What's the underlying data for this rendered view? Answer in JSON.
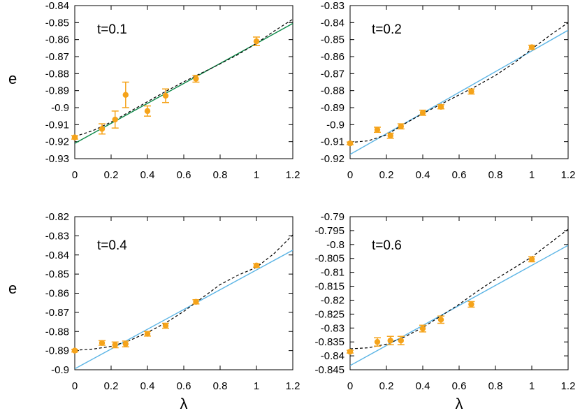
{
  "colors": {
    "points": "#f5a31a",
    "dashed_fit": "#000000",
    "linear_fit_panel1": "#0f8a4a",
    "linear_fit_other": "#5ab4e5"
  },
  "chart_data": [
    {
      "type": "scatter",
      "panel_label": "t=0.1",
      "ylabel": "e",
      "xlabel": "",
      "xlim": [
        0,
        1.2
      ],
      "ylim": [
        -0.93,
        -0.84
      ],
      "xticks": [
        0,
        0.2,
        0.4,
        0.6,
        0.8,
        1,
        1.2
      ],
      "xtick_labels": [
        "0",
        "0.2",
        "0.4",
        "0.6",
        "0.8",
        "1",
        "1.2"
      ],
      "yticks": [
        -0.93,
        -0.92,
        -0.91,
        -0.9,
        -0.89,
        -0.88,
        -0.87,
        -0.86,
        -0.85,
        -0.84
      ],
      "ytick_labels": [
        "-0.93",
        "-0.92",
        "-0.91",
        "-0.9",
        "-0.89",
        "-0.88",
        "-0.87",
        "-0.86",
        "-0.85",
        "-0.84"
      ],
      "grid": false,
      "points": {
        "x": [
          0,
          0.15,
          0.222,
          0.28,
          0.4,
          0.5,
          0.667,
          1
        ],
        "y": [
          -0.9175,
          -0.9125,
          -0.907,
          -0.8925,
          -0.902,
          -0.893,
          -0.883,
          -0.861
        ],
        "err": [
          0.001,
          0.003,
          0.005,
          0.0075,
          0.003,
          0.004,
          0.002,
          0.0025
        ]
      },
      "linear_fit": {
        "x": [
          0,
          1.2
        ],
        "y": [
          -0.921,
          -0.8505
        ]
      },
      "dashed_fit": {
        "x": [
          0,
          0.1,
          0.2,
          0.3,
          0.4,
          0.5,
          0.6,
          0.7,
          0.8,
          0.9,
          1.0,
          1.1,
          1.2
        ],
        "y": [
          -0.917,
          -0.9135,
          -0.9085,
          -0.9025,
          -0.8965,
          -0.8905,
          -0.8848,
          -0.8795,
          -0.8743,
          -0.8687,
          -0.8622,
          -0.8548,
          -0.848
        ]
      }
    },
    {
      "type": "scatter",
      "panel_label": "t=0.2",
      "ylabel": "",
      "xlabel": "",
      "xlim": [
        0,
        1.2
      ],
      "ylim": [
        -0.92,
        -0.83
      ],
      "xticks": [
        0,
        0.2,
        0.4,
        0.6,
        0.8,
        1,
        1.2
      ],
      "xtick_labels": [
        "0",
        "0.2",
        "0.4",
        "0.6",
        "0.8",
        "1",
        "1.2"
      ],
      "yticks": [
        -0.92,
        -0.91,
        -0.9,
        -0.89,
        -0.88,
        -0.87,
        -0.86,
        -0.85,
        -0.84,
        -0.83
      ],
      "ytick_labels": [
        "-0.92",
        "-0.91",
        "-0.9",
        "-0.89",
        "-0.88",
        "-0.87",
        "-0.86",
        "-0.85",
        "-0.84",
        "-0.83"
      ],
      "grid": false,
      "points": {
        "x": [
          0,
          0.15,
          0.222,
          0.28,
          0.4,
          0.5,
          0.667,
          1
        ],
        "y": [
          -0.911,
          -0.903,
          -0.9065,
          -0.901,
          -0.893,
          -0.8895,
          -0.8805,
          -0.8545
        ],
        "err": [
          0.0008,
          0.0015,
          0.0015,
          0.0015,
          0.0015,
          0.0012,
          0.0015,
          0.0012
        ]
      },
      "linear_fit": {
        "x": [
          0,
          1.2
        ],
        "y": [
          -0.9175,
          -0.8445
        ]
      },
      "dashed_fit": {
        "x": [
          0,
          0.1,
          0.2,
          0.3,
          0.4,
          0.5,
          0.6,
          0.7,
          0.8,
          0.9,
          1.0,
          1.1,
          1.2
        ],
        "y": [
          -0.9105,
          -0.9095,
          -0.906,
          -0.8995,
          -0.8935,
          -0.888,
          -0.8825,
          -0.877,
          -0.871,
          -0.864,
          -0.8555,
          -0.8475,
          -0.84
        ]
      }
    },
    {
      "type": "scatter",
      "panel_label": "t=0.4",
      "ylabel": "e",
      "xlabel": "λ",
      "xlim": [
        0,
        1.2
      ],
      "ylim": [
        -0.9,
        -0.82
      ],
      "xticks": [
        0,
        0.2,
        0.4,
        0.6,
        0.8,
        1,
        1.2
      ],
      "xtick_labels": [
        "0",
        "0.2",
        "0.4",
        "0.6",
        "0.8",
        "1",
        "1.2"
      ],
      "yticks": [
        -0.9,
        -0.89,
        -0.88,
        -0.87,
        -0.86,
        -0.85,
        -0.84,
        -0.83,
        -0.82
      ],
      "ytick_labels": [
        "-0.9",
        "-0.89",
        "-0.88",
        "-0.87",
        "-0.86",
        "-0.85",
        "-0.84",
        "-0.83",
        "-0.82"
      ],
      "grid": false,
      "points": {
        "x": [
          0,
          0.15,
          0.222,
          0.28,
          0.4,
          0.5,
          0.667,
          1
        ],
        "y": [
          -0.89,
          -0.886,
          -0.887,
          -0.8865,
          -0.8812,
          -0.877,
          -0.8645,
          -0.8455
        ],
        "err": [
          0.0007,
          0.0012,
          0.0015,
          0.0015,
          0.0012,
          0.0013,
          0.0011,
          0.0009
        ]
      },
      "linear_fit": {
        "x": [
          0,
          1.2
        ],
        "y": [
          -0.8995,
          -0.8375
        ]
      },
      "dashed_fit": {
        "x": [
          0,
          0.1,
          0.2,
          0.3,
          0.4,
          0.5,
          0.6,
          0.7,
          0.8,
          0.9,
          1.0,
          1.1,
          1.2
        ],
        "y": [
          -0.8898,
          -0.8892,
          -0.8878,
          -0.8848,
          -0.8805,
          -0.8755,
          -0.8695,
          -0.8625,
          -0.8555,
          -0.8505,
          -0.8465,
          -0.839,
          -0.8295
        ]
      }
    },
    {
      "type": "scatter",
      "panel_label": "t=0.6",
      "ylabel": "",
      "xlabel": "λ",
      "xlim": [
        0,
        1.2
      ],
      "ylim": [
        -0.845,
        -0.79
      ],
      "xticks": [
        0,
        0.2,
        0.4,
        0.6,
        0.8,
        1,
        1.2
      ],
      "xtick_labels": [
        "0",
        "0.2",
        "0.4",
        "0.6",
        "0.8",
        "1",
        "1.2"
      ],
      "yticks": [
        -0.845,
        -0.84,
        -0.835,
        -0.83,
        -0.825,
        -0.82,
        -0.815,
        -0.81,
        -0.805,
        -0.8,
        -0.795,
        -0.79
      ],
      "ytick_labels": [
        "-0.845",
        "-0.84",
        "-0.835",
        "-0.83",
        "-0.825",
        "-0.82",
        "-0.815",
        "-0.81",
        "-0.805",
        "-0.8",
        "-0.795",
        "-0.79"
      ],
      "grid": false,
      "points": {
        "x": [
          0,
          0.15,
          0.222,
          0.28,
          0.4,
          0.5,
          0.667,
          1
        ],
        "y": [
          -0.8385,
          -0.835,
          -0.8345,
          -0.8345,
          -0.8302,
          -0.827,
          -0.8215,
          -0.8053
        ],
        "err": [
          0.0005,
          0.0015,
          0.0015,
          0.0015,
          0.0012,
          0.0013,
          0.001,
          0.0009
        ]
      },
      "linear_fit": {
        "x": [
          0,
          1.2
        ],
        "y": [
          -0.8435,
          -0.8003
        ]
      },
      "dashed_fit": {
        "x": [
          0,
          0.1,
          0.2,
          0.3,
          0.4,
          0.5,
          0.6,
          0.7,
          0.8,
          0.9,
          1.0,
          1.1,
          1.2
        ],
        "y": [
          -0.8375,
          -0.8371,
          -0.8358,
          -0.8332,
          -0.8298,
          -0.8257,
          -0.8215,
          -0.8168,
          -0.8125,
          -0.8085,
          -0.8045,
          -0.7995,
          -0.7945
        ]
      }
    }
  ]
}
